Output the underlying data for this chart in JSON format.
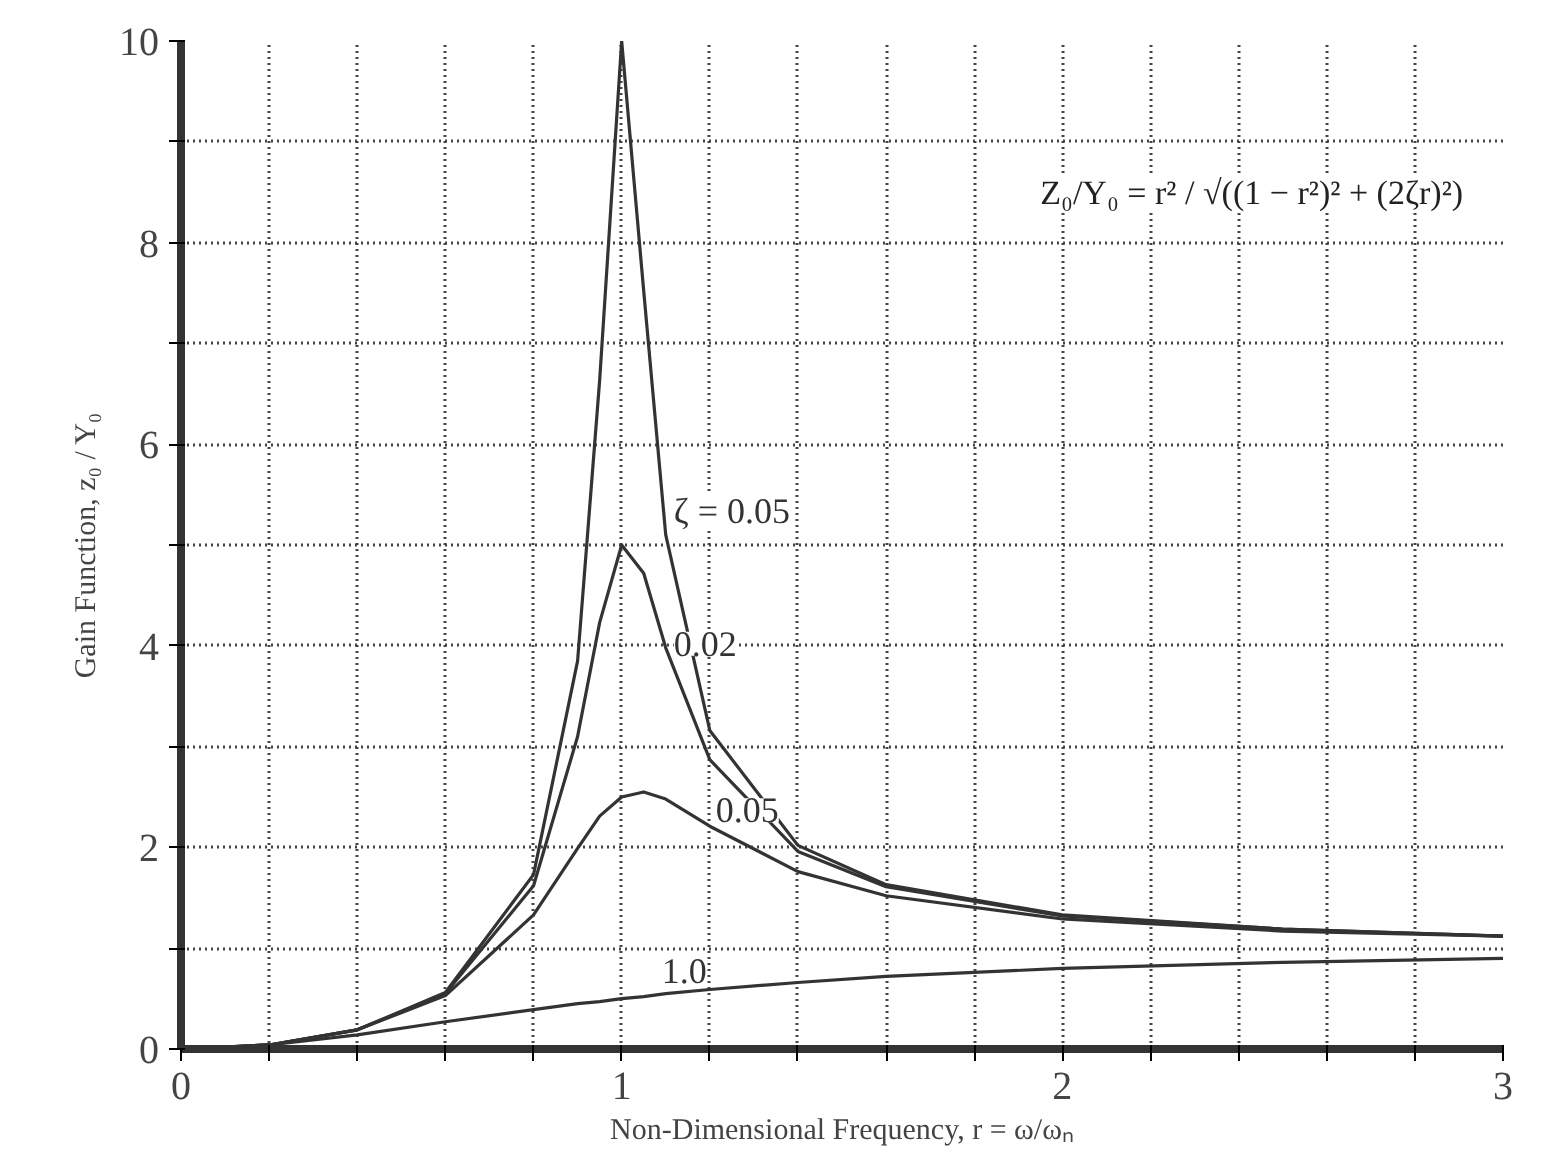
{
  "chart_data": {
    "type": "line",
    "xlabel": "Non-Dimensional Frequency, r = ω/ωₙ",
    "ylabel": "Gain Function, z₀ / Y₀",
    "x": [
      0,
      0.2,
      0.4,
      0.6,
      0.8,
      0.9,
      0.95,
      1.0,
      1.05,
      1.1,
      1.2,
      1.4,
      1.6,
      2.0,
      2.5,
      3.0
    ],
    "series": [
      {
        "name": "ζ = 0.05",
        "color": "#333333",
        "values": [
          0,
          0.04,
          0.19,
          0.56,
          1.73,
          3.85,
          6.63,
          10,
          7.52,
          5.1,
          3.16,
          2.02,
          1.63,
          1.33,
          1.19,
          1.12
        ]
      },
      {
        "name": "0.02",
        "color": "#333333",
        "values": [
          0,
          0.04,
          0.19,
          0.55,
          1.62,
          3.1,
          4.23,
          5,
          4.72,
          3.98,
          2.87,
          1.96,
          1.61,
          1.32,
          1.19,
          1.12
        ]
      },
      {
        "name": "0.05",
        "color": "#333333",
        "values": [
          0,
          0.04,
          0.19,
          0.53,
          1.33,
          1.99,
          2.31,
          2.5,
          2.55,
          2.48,
          2.21,
          1.76,
          1.52,
          1.29,
          1.17,
          1.12
        ]
      },
      {
        "name": "1.0",
        "color": "#333333",
        "values": [
          0,
          0.04,
          0.14,
          0.27,
          0.39,
          0.45,
          0.47,
          0.5,
          0.52,
          0.55,
          0.59,
          0.66,
          0.72,
          0.8,
          0.86,
          0.9
        ]
      }
    ],
    "xlim": [
      0,
      3
    ],
    "ylim": [
      0,
      10
    ],
    "xticks": [
      0,
      {
        "value": 0.2,
        "label": null
      },
      {
        "value": 0.4,
        "label": null
      },
      {
        "value": 0.6,
        "label": null
      },
      {
        "value": 0.8,
        "label": null
      },
      1,
      {
        "value": 1.2,
        "label": null
      },
      {
        "value": 1.4,
        "label": null
      },
      {
        "value": 1.6,
        "label": null
      },
      {
        "value": 1.8,
        "label": null
      },
      2,
      {
        "value": 2.2,
        "label": null
      },
      {
        "value": 2.4,
        "label": null
      },
      {
        "value": 2.6,
        "label": null
      },
      {
        "value": 2.8,
        "label": null
      },
      3
    ],
    "yticks": [
      0,
      {
        "value": 1,
        "label": null
      },
      2,
      {
        "value": 3,
        "label": null
      },
      4,
      {
        "value": 5,
        "label": null
      },
      6,
      {
        "value": 7,
        "label": null
      },
      8,
      {
        "value": 9,
        "label": null
      },
      10
    ],
    "grid": true,
    "marker": "none",
    "line_style": "solid",
    "annotations": [
      "Z₀/Y₀ = r² / √((1 − r²)² + (2ζr)²)"
    ]
  }
}
